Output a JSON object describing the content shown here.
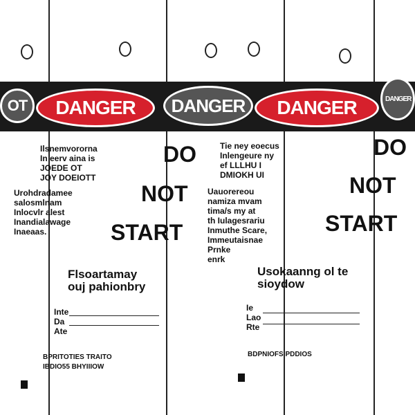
{
  "tags": [
    {
      "header": "DANGER",
      "header_left": "OT",
      "body_lines": [
        "Ilsnemvororna",
        "In eerv aina is",
        "JOEDE OT",
        "JOY DOEIOTT"
      ],
      "body2": [
        "Urohdradamee",
        "salosmlnam",
        "Inlocvlr alest",
        "Inandialawage",
        "Inaeaas."
      ],
      "caption": "Flsoartamay ouj pahionbry",
      "fields": [
        "Inte",
        "Da",
        "Ate"
      ],
      "footer": [
        "BPRITOTIES TRAITO",
        "IBDIO55 BHYIIIOW"
      ]
    },
    {
      "header": "DANGER",
      "big": [
        "DO",
        "NOT",
        "START"
      ]
    },
    {
      "header": "DANGER",
      "body_lines": [
        "Tie ney eoecus",
        "Inlengeure ny",
        "ef LLLHU I",
        "DMIOKH UI"
      ],
      "body2": [
        "Uauorereou",
        "namiza mvam",
        "tima/s my at",
        "th Iulagesrariu",
        "Inmuthe Scare,",
        "Immeutaisnae",
        "Prnke",
        "enrk"
      ],
      "caption": "Usokaanng ol te sioydow",
      "fields": [
        "Ie",
        "Lao",
        "Rte"
      ],
      "footer": [
        "BDPNIOFS PDDIOS"
      ]
    },
    {
      "header": "DANGER",
      "big": [
        "DO",
        "NOT",
        "START"
      ]
    }
  ],
  "colors": {
    "red": "#d6202c",
    "black": "#1a1a1a"
  }
}
